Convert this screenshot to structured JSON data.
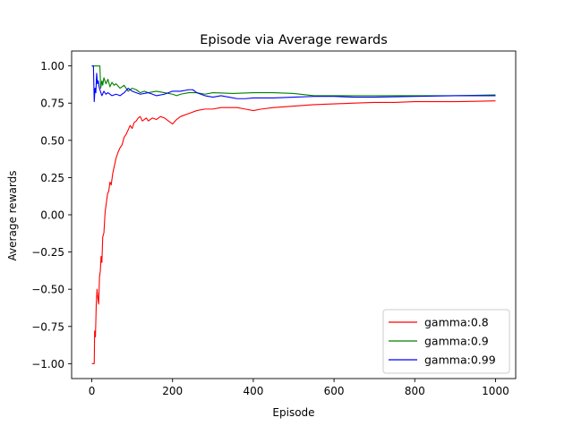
{
  "chart_data": {
    "type": "line",
    "title": "Episode via Average rewards",
    "xlabel": "Episode",
    "ylabel": "Average rewards",
    "xlim": [
      -50,
      1050
    ],
    "ylim": [
      -1.1,
      1.1
    ],
    "xticks": [
      0,
      200,
      400,
      600,
      800,
      1000
    ],
    "xtick_labels": [
      "0",
      "200",
      "400",
      "600",
      "800",
      "1000"
    ],
    "yticks": [
      -1.0,
      -0.75,
      -0.5,
      -0.25,
      0.0,
      0.25,
      0.5,
      0.75,
      1.0
    ],
    "ytick_labels": [
      "−1.00",
      "−0.75",
      "−0.50",
      "−0.25",
      "0.00",
      "0.25",
      "0.50",
      "0.75",
      "1.00"
    ],
    "grid": false,
    "legend_position": "lower-right",
    "series": [
      {
        "name": "gamma:0.8",
        "color": "#ff0000",
        "points": [
          [
            0,
            -1.0
          ],
          [
            6,
            -1.0
          ],
          [
            7,
            -0.78
          ],
          [
            9,
            -0.82
          ],
          [
            11,
            -0.6
          ],
          [
            13,
            -0.5
          ],
          [
            15,
            -0.56
          ],
          [
            17,
            -0.6
          ],
          [
            19,
            -0.42
          ],
          [
            21,
            -0.38
          ],
          [
            23,
            -0.28
          ],
          [
            25,
            -0.32
          ],
          [
            27,
            -0.15
          ],
          [
            30,
            -0.12
          ],
          [
            33,
            0.02
          ],
          [
            36,
            0.08
          ],
          [
            39,
            0.14
          ],
          [
            42,
            0.16
          ],
          [
            45,
            0.22
          ],
          [
            48,
            0.2
          ],
          [
            52,
            0.28
          ],
          [
            56,
            0.33
          ],
          [
            60,
            0.38
          ],
          [
            65,
            0.42
          ],
          [
            70,
            0.45
          ],
          [
            75,
            0.47
          ],
          [
            80,
            0.52
          ],
          [
            85,
            0.54
          ],
          [
            90,
            0.57
          ],
          [
            95,
            0.6
          ],
          [
            100,
            0.58
          ],
          [
            105,
            0.62
          ],
          [
            110,
            0.63
          ],
          [
            115,
            0.65
          ],
          [
            120,
            0.66
          ],
          [
            125,
            0.63
          ],
          [
            130,
            0.64
          ],
          [
            135,
            0.65
          ],
          [
            140,
            0.63
          ],
          [
            150,
            0.65
          ],
          [
            160,
            0.64
          ],
          [
            170,
            0.66
          ],
          [
            180,
            0.65
          ],
          [
            190,
            0.63
          ],
          [
            195,
            0.62
          ],
          [
            200,
            0.61
          ],
          [
            210,
            0.64
          ],
          [
            220,
            0.66
          ],
          [
            240,
            0.68
          ],
          [
            260,
            0.7
          ],
          [
            280,
            0.71
          ],
          [
            300,
            0.71
          ],
          [
            320,
            0.72
          ],
          [
            340,
            0.72
          ],
          [
            360,
            0.72
          ],
          [
            380,
            0.71
          ],
          [
            400,
            0.7
          ],
          [
            420,
            0.71
          ],
          [
            450,
            0.72
          ],
          [
            500,
            0.73
          ],
          [
            550,
            0.74
          ],
          [
            600,
            0.745
          ],
          [
            650,
            0.75
          ],
          [
            700,
            0.755
          ],
          [
            750,
            0.755
          ],
          [
            800,
            0.76
          ],
          [
            850,
            0.76
          ],
          [
            900,
            0.76
          ],
          [
            950,
            0.762
          ],
          [
            1000,
            0.765
          ]
        ]
      },
      {
        "name": "gamma:0.9",
        "color": "#008000",
        "points": [
          [
            0,
            1.0
          ],
          [
            20,
            1.0
          ],
          [
            22,
            0.85
          ],
          [
            25,
            0.9
          ],
          [
            27,
            0.87
          ],
          [
            30,
            0.92
          ],
          [
            35,
            0.88
          ],
          [
            40,
            0.91
          ],
          [
            45,
            0.86
          ],
          [
            50,
            0.89
          ],
          [
            55,
            0.87
          ],
          [
            60,
            0.88
          ],
          [
            70,
            0.85
          ],
          [
            80,
            0.87
          ],
          [
            90,
            0.83
          ],
          [
            100,
            0.85
          ],
          [
            110,
            0.84
          ],
          [
            120,
            0.82
          ],
          [
            130,
            0.83
          ],
          [
            140,
            0.82
          ],
          [
            160,
            0.83
          ],
          [
            180,
            0.82
          ],
          [
            200,
            0.81
          ],
          [
            210,
            0.8
          ],
          [
            220,
            0.81
          ],
          [
            240,
            0.82
          ],
          [
            260,
            0.82
          ],
          [
            280,
            0.81
          ],
          [
            300,
            0.82
          ],
          [
            350,
            0.815
          ],
          [
            400,
            0.82
          ],
          [
            450,
            0.82
          ],
          [
            500,
            0.815
          ],
          [
            550,
            0.8
          ],
          [
            600,
            0.8
          ],
          [
            650,
            0.8
          ],
          [
            700,
            0.8
          ],
          [
            800,
            0.8
          ],
          [
            900,
            0.8
          ],
          [
            1000,
            0.805
          ]
        ]
      },
      {
        "name": "gamma:0.99",
        "color": "#0000ff",
        "points": [
          [
            0,
            1.0
          ],
          [
            4,
            1.0
          ],
          [
            6,
            0.76
          ],
          [
            8,
            0.85
          ],
          [
            10,
            0.82
          ],
          [
            12,
            0.95
          ],
          [
            14,
            0.88
          ],
          [
            16,
            0.9
          ],
          [
            18,
            0.86
          ],
          [
            20,
            0.84
          ],
          [
            25,
            0.8
          ],
          [
            30,
            0.83
          ],
          [
            35,
            0.81
          ],
          [
            40,
            0.82
          ],
          [
            50,
            0.8
          ],
          [
            60,
            0.81
          ],
          [
            70,
            0.8
          ],
          [
            80,
            0.82
          ],
          [
            90,
            0.85
          ],
          [
            100,
            0.83
          ],
          [
            110,
            0.82
          ],
          [
            120,
            0.81
          ],
          [
            140,
            0.82
          ],
          [
            160,
            0.8
          ],
          [
            180,
            0.81
          ],
          [
            200,
            0.83
          ],
          [
            220,
            0.83
          ],
          [
            240,
            0.84
          ],
          [
            250,
            0.84
          ],
          [
            260,
            0.82
          ],
          [
            280,
            0.8
          ],
          [
            300,
            0.79
          ],
          [
            320,
            0.8
          ],
          [
            340,
            0.79
          ],
          [
            360,
            0.78
          ],
          [
            380,
            0.78
          ],
          [
            400,
            0.785
          ],
          [
            450,
            0.785
          ],
          [
            500,
            0.79
          ],
          [
            550,
            0.795
          ],
          [
            600,
            0.795
          ],
          [
            650,
            0.79
          ],
          [
            700,
            0.79
          ],
          [
            800,
            0.795
          ],
          [
            900,
            0.8
          ],
          [
            1000,
            0.8
          ]
        ]
      }
    ]
  }
}
